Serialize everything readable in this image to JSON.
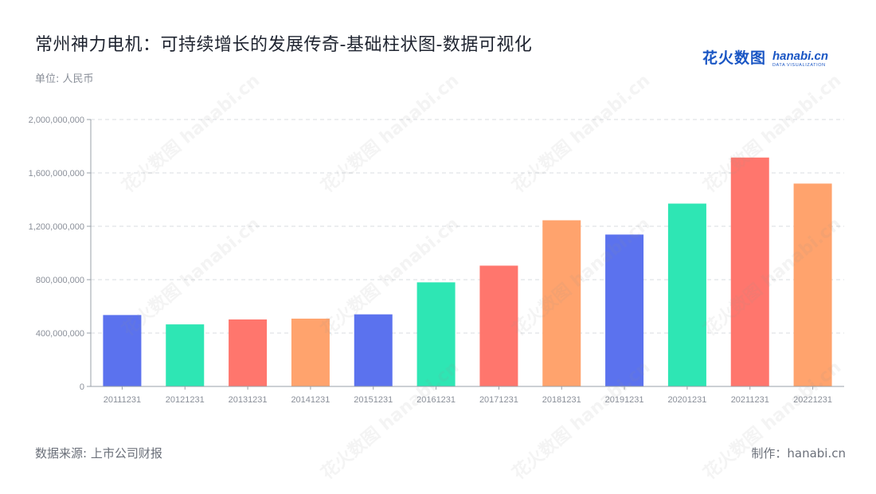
{
  "header": {
    "title": "常州神力电机：可持续增长的发展传奇-基础柱状图-数据可视化",
    "unit": "单位: 人民币"
  },
  "logo": {
    "cn": "花火数图",
    "en": "hanabi.cn",
    "sub": "DATA VISUALIZATION",
    "color": "#1a56c4"
  },
  "footer": {
    "source": "数据来源: 上市公司财报",
    "maker": "制作：hanabi.cn"
  },
  "chart_data": {
    "type": "bar",
    "categories": [
      "20111231",
      "20121231",
      "20131231",
      "20141231",
      "20151231",
      "20161231",
      "20171231",
      "20181231",
      "20191231",
      "20201231",
      "20211231",
      "20221231"
    ],
    "values": [
      535000000,
      465000000,
      502000000,
      508000000,
      540000000,
      780000000,
      905000000,
      1245000000,
      1138000000,
      1370000000,
      1715000000,
      1520000000
    ],
    "colors": [
      "#5b72ee",
      "#2ee6b4",
      "#ff766d",
      "#ffa36d",
      "#5b72ee",
      "#2ee6b4",
      "#ff766d",
      "#ffa36d",
      "#5b72ee",
      "#2ee6b4",
      "#ff766d",
      "#ffa36d"
    ],
    "yticks": [
      "0",
      "400,000,000",
      "800,000,000",
      "1,200,000,000",
      "1,600,000,000",
      "2,000,000,000"
    ],
    "ylim": [
      0,
      2000000000
    ],
    "grid": true,
    "xlabel": "",
    "ylabel": ""
  }
}
